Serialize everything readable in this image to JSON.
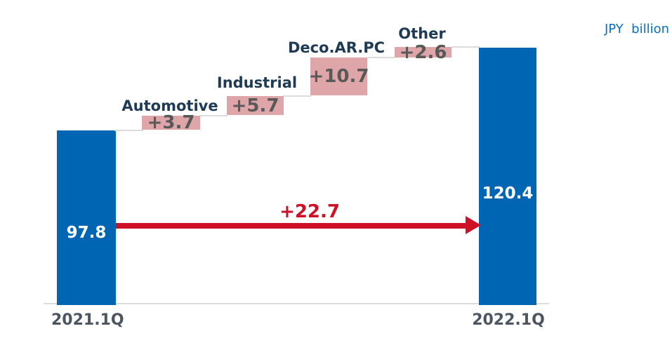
{
  "colors": {
    "bar": "#0066b4",
    "step_fill": "#dfa6aa",
    "value_text": "#595959",
    "category_text": "#1e3a54",
    "axis_text": "#4c5560",
    "arrow": "#ce1126",
    "line": "#dcdcdc",
    "unit_text": "#0b6fc0",
    "bar_value_text": "#ffffff"
  },
  "unit_label": "JPY  billion",
  "chart_data": {
    "type": "bar",
    "subtype": "waterfall",
    "title": "",
    "unit": "JPY billion",
    "grid": false,
    "legend_position": "none",
    "categories": [
      "2021.1Q",
      "Automotive",
      "Industrial",
      "Deco.AR.PC",
      "Other",
      "2022.1Q"
    ],
    "values": [
      97.8,
      3.7,
      5.7,
      10.7,
      2.6,
      120.4
    ],
    "roles": [
      "total",
      "increase",
      "increase",
      "increase",
      "increase",
      "total"
    ],
    "start": {
      "label": "2021.1Q",
      "value": 97.8,
      "display": "97.8"
    },
    "end": {
      "label": "2022.1Q",
      "value": 120.4,
      "display": "120.4"
    },
    "steps": [
      {
        "label": "Automotive",
        "value": 3.7,
        "display": "+3.7"
      },
      {
        "label": "Industrial",
        "value": 5.7,
        "display": "+5.7"
      },
      {
        "label": "Deco.AR.PC",
        "value": 10.7,
        "display": "+10.7"
      },
      {
        "label": "Other",
        "value": 2.6,
        "display": "+2.6"
      }
    ],
    "total_change": {
      "value": 22.7,
      "display": "+22.7"
    }
  }
}
